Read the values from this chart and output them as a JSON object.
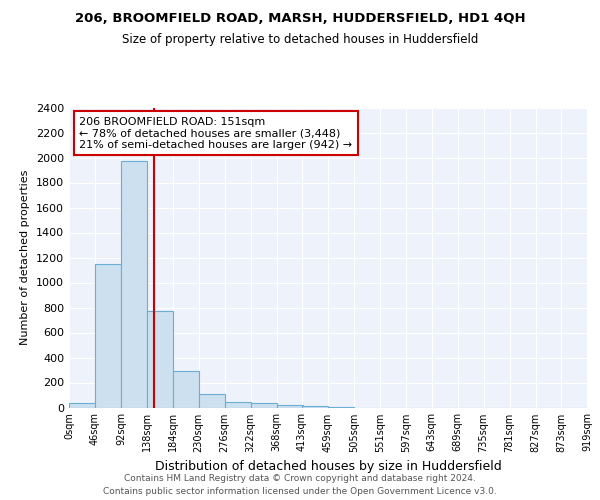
{
  "title1": "206, BROOMFIELD ROAD, MARSH, HUDDERSFIELD, HD1 4QH",
  "title2": "Size of property relative to detached houses in Huddersfield",
  "xlabel": "Distribution of detached houses by size in Huddersfield",
  "ylabel": "Number of detached properties",
  "footer1": "Contains HM Land Registry data © Crown copyright and database right 2024.",
  "footer2": "Contains public sector information licensed under the Open Government Licence v3.0.",
  "annotation_line1": "206 BROOMFIELD ROAD: 151sqm",
  "annotation_line2": "← 78% of detached houses are smaller (3,448)",
  "annotation_line3": "21% of semi-detached houses are larger (942) →",
  "bar_left_edges": [
    0,
    46,
    92,
    138,
    184,
    230,
    276,
    322,
    368,
    413,
    459,
    505,
    551,
    597,
    643,
    689,
    735,
    781,
    827,
    873
  ],
  "bar_heights": [
    35,
    1150,
    1970,
    770,
    295,
    105,
    45,
    35,
    20,
    15,
    5,
    0,
    0,
    0,
    0,
    0,
    0,
    0,
    0,
    0
  ],
  "bin_width": 46,
  "property_size": 151,
  "bar_color": "#cde0f0",
  "bar_edge_color": "#6aaed6",
  "vline_color": "#cc0000",
  "annotation_box_color": "#cc0000",
  "ylim": [
    0,
    2400
  ],
  "xlim": [
    0,
    920
  ],
  "xtick_labels": [
    "0sqm",
    "46sqm",
    "92sqm",
    "138sqm",
    "184sqm",
    "230sqm",
    "276sqm",
    "322sqm",
    "368sqm",
    "413sqm",
    "459sqm",
    "505sqm",
    "551sqm",
    "597sqm",
    "643sqm",
    "689sqm",
    "735sqm",
    "781sqm",
    "827sqm",
    "873sqm",
    "919sqm"
  ],
  "xtick_positions": [
    0,
    46,
    92,
    138,
    184,
    230,
    276,
    322,
    368,
    413,
    459,
    505,
    551,
    597,
    643,
    689,
    735,
    781,
    827,
    873,
    919
  ],
  "ytick_positions": [
    0,
    200,
    400,
    600,
    800,
    1000,
    1200,
    1400,
    1600,
    1800,
    2000,
    2200,
    2400
  ],
  "background_color": "#eef2fa",
  "figure_bg": "#ffffff"
}
